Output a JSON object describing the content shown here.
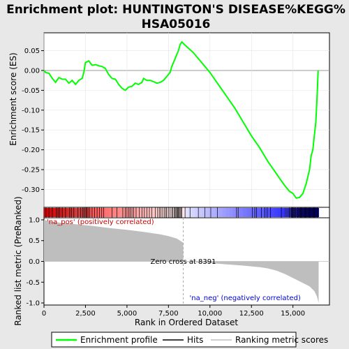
{
  "chart_data": {
    "type": "line",
    "title_line1": "Enrichment plot: HUNTINGTON'S DISEASE%KEGG%",
    "title_line2": "HSA05016",
    "top_panel": {
      "ylabel": "Enrichment score (ES)",
      "ylim": [
        -0.345,
        0.095
      ],
      "yticks": [
        0.05,
        0.0,
        -0.05,
        -0.1,
        -0.15,
        -0.2,
        -0.25,
        -0.3
      ],
      "ytick_labels": [
        "0.05",
        "0.00",
        "-0.05",
        "-0.10",
        "-0.15",
        "-0.20",
        "-0.25",
        "-0.30"
      ],
      "line_color": "#00ff00",
      "es_points": [
        [
          0,
          0
        ],
        [
          100,
          -0.005
        ],
        [
          300,
          -0.007
        ],
        [
          500,
          -0.02
        ],
        [
          700,
          -0.03
        ],
        [
          900,
          -0.018
        ],
        [
          1100,
          -0.022
        ],
        [
          1300,
          -0.022
        ],
        [
          1500,
          -0.032
        ],
        [
          1700,
          -0.025
        ],
        [
          1900,
          -0.035
        ],
        [
          2100,
          -0.025
        ],
        [
          2300,
          -0.02
        ],
        [
          2400,
          -0.005
        ],
        [
          2500,
          0.02
        ],
        [
          2700,
          0.024
        ],
        [
          2900,
          0.013
        ],
        [
          3100,
          0.015
        ],
        [
          3300,
          0.012
        ],
        [
          3500,
          0.01
        ],
        [
          3700,
          0.005
        ],
        [
          3900,
          -0.01
        ],
        [
          4100,
          -0.02
        ],
        [
          4300,
          -0.022
        ],
        [
          4500,
          -0.035
        ],
        [
          4700,
          -0.045
        ],
        [
          4900,
          -0.05
        ],
        [
          5100,
          -0.042
        ],
        [
          5300,
          -0.04
        ],
        [
          5500,
          -0.032
        ],
        [
          5700,
          -0.035
        ],
        [
          5900,
          -0.03
        ],
        [
          6000,
          -0.02
        ],
        [
          6200,
          -0.025
        ],
        [
          6400,
          -0.025
        ],
        [
          6600,
          -0.028
        ],
        [
          6800,
          -0.032
        ],
        [
          7000,
          -0.03
        ],
        [
          7200,
          -0.025
        ],
        [
          7400,
          -0.015
        ],
        [
          7600,
          -0.005
        ],
        [
          7700,
          0.01
        ],
        [
          7800,
          0.02
        ],
        [
          7900,
          0.03
        ],
        [
          8000,
          0.04
        ],
        [
          8100,
          0.05
        ],
        [
          8200,
          0.065
        ],
        [
          8300,
          0.072
        ],
        [
          8600,
          0.06
        ],
        [
          9000,
          0.045
        ],
        [
          9500,
          0.02
        ],
        [
          10000,
          -0.005
        ],
        [
          10500,
          -0.035
        ],
        [
          11000,
          -0.065
        ],
        [
          11500,
          -0.095
        ],
        [
          12000,
          -0.13
        ],
        [
          12500,
          -0.165
        ],
        [
          13000,
          -0.195
        ],
        [
          13500,
          -0.23
        ],
        [
          14000,
          -0.26
        ],
        [
          14500,
          -0.29
        ],
        [
          14800,
          -0.305
        ],
        [
          15000,
          -0.31
        ],
        [
          15200,
          -0.322
        ],
        [
          15400,
          -0.32
        ],
        [
          15600,
          -0.31
        ],
        [
          15800,
          -0.285
        ],
        [
          16000,
          -0.25
        ],
        [
          16100,
          -0.215
        ],
        [
          16200,
          -0.2
        ],
        [
          16300,
          -0.16
        ],
        [
          16380,
          -0.13
        ],
        [
          16440,
          -0.08
        ],
        [
          16480,
          -0.04
        ],
        [
          16520,
          0.0
        ]
      ]
    },
    "hits_panel": {
      "hit_positions": [
        120,
        300,
        500,
        750,
        850,
        950,
        1100,
        1300,
        1550,
        1650,
        1800,
        2050,
        2200,
        2320,
        2400,
        2480,
        2540,
        2600,
        2660,
        2760,
        2900,
        3050,
        3200,
        3350,
        3480,
        3600,
        4100,
        4400,
        4750,
        4900,
        5000,
        5100,
        5200,
        5300,
        5400,
        5550,
        5750,
        5900,
        6050,
        6200,
        6350,
        6500,
        6700,
        6850,
        6950,
        7050,
        7150,
        7250,
        7350,
        7400,
        7500,
        7600,
        7700,
        7750,
        7850,
        7900,
        7950,
        8000,
        8050,
        8100,
        8150,
        8200,
        8250,
        8300,
        8500,
        8800,
        9300,
        9700,
        10050,
        10450,
        11600,
        11700,
        12550,
        12700,
        12800,
        13100,
        13300,
        13450,
        13650,
        14300,
        14800,
        14900,
        14950,
        15000,
        15050,
        15100,
        15150,
        15250,
        15300,
        15350,
        15400,
        15450,
        15500,
        15550,
        15600,
        15650,
        15700,
        15750,
        15800,
        15850,
        15900,
        15950,
        16000,
        16050,
        16100,
        16150,
        16200,
        16250,
        16300,
        16350,
        16400,
        16450,
        16500
      ]
    },
    "metric_panel": {
      "ylabel": "Ranked list metric (PreRanked)",
      "ylim": [
        -1.05,
        1.05
      ],
      "yticks": [
        1.0,
        0.5,
        0.0,
        -0.5,
        -1.0
      ],
      "ytick_labels": [
        "1.0",
        "0.5",
        "0.0",
        "-0.5",
        "-1.0"
      ],
      "xlabel": "Rank in Ordered Dataset",
      "xticks": [
        0,
        2500,
        5000,
        7500,
        10000,
        12500,
        15000
      ],
      "xtick_labels": [
        "0",
        "2,500",
        "5,000",
        "7,500",
        "10,000",
        "12,500",
        "15,000"
      ],
      "xlim": [
        0,
        17200
      ],
      "n_genes": 16550,
      "zero_cross": 8391,
      "zero_cross_label": "Zero cross at 8391",
      "pos_label": "'na_pos' (positively correlated)",
      "neg_label": "'na_neg' (negatively correlated)",
      "metric_points": [
        [
          0,
          1.0
        ],
        [
          100,
          0.99
        ],
        [
          400,
          0.96
        ],
        [
          1000,
          0.93
        ],
        [
          2000,
          0.89
        ],
        [
          3000,
          0.85
        ],
        [
          4000,
          0.8
        ],
        [
          5000,
          0.76
        ],
        [
          6000,
          0.71
        ],
        [
          7000,
          0.65
        ],
        [
          7500,
          0.61
        ],
        [
          8000,
          0.55
        ],
        [
          8200,
          0.5
        ],
        [
          8391,
          0.45
        ],
        [
          8392,
          -0.01
        ],
        [
          9000,
          -0.02
        ],
        [
          10000,
          -0.04
        ],
        [
          11000,
          -0.07
        ],
        [
          12000,
          -0.1
        ],
        [
          13000,
          -0.14
        ],
        [
          13500,
          -0.17
        ],
        [
          14000,
          -0.22
        ],
        [
          14500,
          -0.3
        ],
        [
          15000,
          -0.4
        ],
        [
          15500,
          -0.5
        ],
        [
          16000,
          -0.6
        ],
        [
          16300,
          -0.72
        ],
        [
          16450,
          -0.85
        ],
        [
          16550,
          -1.0
        ]
      ],
      "pos_color": "#ff0000",
      "neg_color": "#0000ff"
    },
    "legend": {
      "entries": [
        "Enrichment profile",
        "Hits",
        "Ranking metric scores"
      ]
    }
  }
}
